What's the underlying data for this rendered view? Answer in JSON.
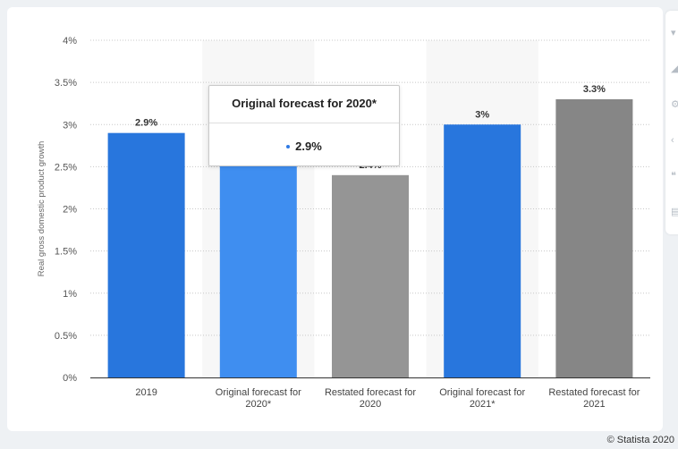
{
  "chart_data": {
    "type": "bar",
    "categories": [
      [
        "2019"
      ],
      [
        "Original forecast for",
        "2020*"
      ],
      [
        "Restated forecast for",
        "2020"
      ],
      [
        "Original forecast for",
        "2021*"
      ],
      [
        "Restated forecast for",
        "2021"
      ]
    ],
    "values": [
      2.9,
      2.9,
      2.4,
      3.0,
      3.3
    ],
    "value_labels": [
      "2.9%",
      "2.9%",
      "2.4%",
      "3%",
      "3.3%"
    ],
    "bar_colors": [
      "#2876dd",
      "#3f8ef0",
      "#959595",
      "#2876dd",
      "#868686"
    ],
    "highlighted_bands": [
      1,
      3
    ],
    "ylabel": "Real gross domestic product growth",
    "yticks": [
      "0%",
      "0.5%",
      "1%",
      "1.5%",
      "2%",
      "2.5%",
      "3%",
      "3.5%",
      "4%"
    ],
    "ylim": [
      0,
      4
    ],
    "grid": true,
    "title": "",
    "xlabel": ""
  },
  "tooltip": {
    "title": "Original forecast for 2020*",
    "value": "2.9%"
  },
  "credit": "© Statista 2020",
  "toolbar_icons": [
    "filter-icon",
    "chart-type-icon",
    "settings-icon",
    "share-icon",
    "quote-icon",
    "print-icon"
  ]
}
